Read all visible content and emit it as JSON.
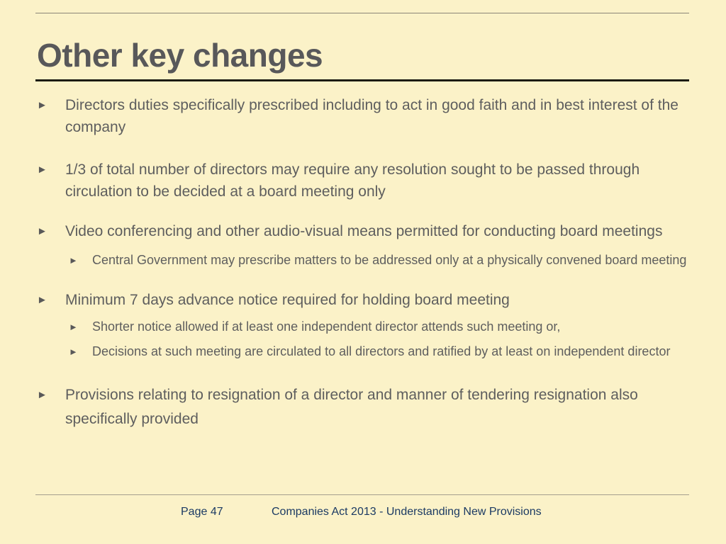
{
  "slide": {
    "title": "Other key changes",
    "marker_glyph": "►",
    "bullets": [
      {
        "level": 1,
        "text": "Directors duties specifically prescribed including to act in good faith and in best interest of the company"
      },
      {
        "level": 1,
        "text": "1/3 of total number of directors may require any resolution sought to be passed through circulation to be decided at a board meeting only"
      },
      {
        "level": 1,
        "text": "Video conferencing and other audio-visual means permitted for conducting board meetings"
      },
      {
        "level": 2,
        "text": "Central Government may prescribe matters to be addressed only at a physically convened board meeting"
      },
      {
        "level": 1,
        "text": "Minimum 7 days advance notice required for holding board meeting"
      },
      {
        "level": 2,
        "text": "Shorter notice allowed if at least one independent director attends such meeting or,"
      },
      {
        "level": 2,
        "text": "Decisions at such meeting are circulated to all directors and ratified by at least on independent director"
      },
      {
        "level": 1,
        "text": "Provisions relating to resignation of a director and manner of tendering resignation also specifically provided"
      }
    ],
    "footer": {
      "page_label": "Page 47",
      "deck_title": "Companies Act 2013 - Understanding New Provisions"
    },
    "colors": {
      "background": "#FBF2C8",
      "title_text": "#58585A",
      "body_text": "#5E5E5E",
      "footer_text": "#1B3A63",
      "title_rule": "#1B1B12",
      "thin_rule": "#8B8578"
    }
  }
}
